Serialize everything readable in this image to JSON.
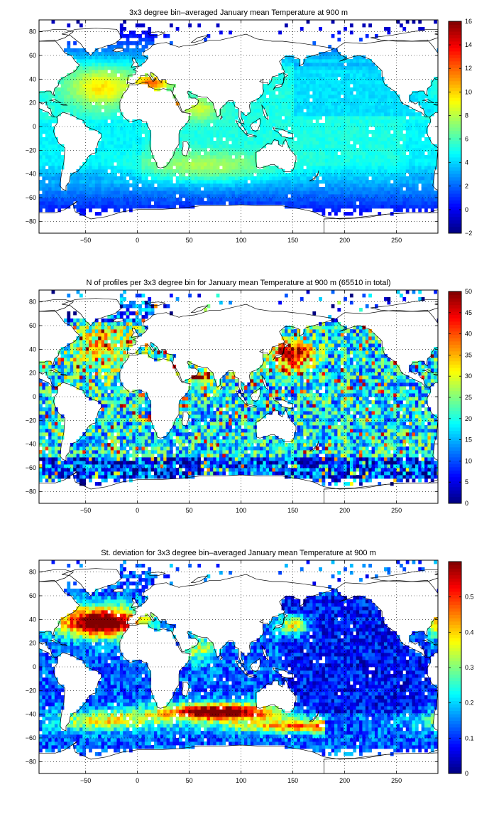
{
  "chart_data": [
    {
      "type": "heatmap",
      "title": "3x3 degree bin–averaged January mean Temperature at 900 m",
      "xlabel": "",
      "ylabel": "",
      "xlim": [
        -95,
        290
      ],
      "ylim": [
        -90,
        90
      ],
      "x_ticks": [
        -50,
        0,
        50,
        100,
        150,
        200,
        250
      ],
      "y_ticks": [
        -80,
        -60,
        -40,
        -20,
        0,
        20,
        40,
        60,
        80
      ],
      "colorbar": {
        "min": -2,
        "max": 16,
        "ticks": [
          -2,
          0,
          2,
          4,
          6,
          8,
          10,
          12,
          14,
          16
        ]
      },
      "colormap": "jet",
      "grid": true,
      "bin_size_deg": 3,
      "description_values": {
        "north_atlantic_subtropics": 9,
        "mediterranean_outflow": 14,
        "red_sea": 12,
        "arabian_sea": 9,
        "southern_ocean": 1,
        "north_pacific": 4,
        "south_indian": 8,
        "general_interior": 5
      }
    },
    {
      "type": "heatmap",
      "title": "N of profiles per 3x3 degree bin for January mean Temperature at 900 m (65510 in total)",
      "xlabel": "",
      "ylabel": "",
      "xlim": [
        -95,
        290
      ],
      "ylim": [
        -90,
        90
      ],
      "x_ticks": [
        -50,
        0,
        50,
        100,
        150,
        200,
        250
      ],
      "y_ticks": [
        -80,
        -60,
        -40,
        -20,
        0,
        20,
        40,
        60,
        80
      ],
      "colorbar": {
        "min": 0,
        "max": 50,
        "ticks": [
          0,
          5,
          10,
          15,
          20,
          25,
          30,
          35,
          40,
          45,
          50
        ]
      },
      "colormap": "jet",
      "grid": true,
      "bin_size_deg": 3,
      "description_values": {
        "kuroshio_region": 48,
        "north_atlantic": 35,
        "arabian_sea": 40,
        "southern_ocean": 8,
        "general_interior": 20
      }
    },
    {
      "type": "heatmap",
      "title": "St. deviation for 3x3 degree bin–averaged January mean Temperature at 900 m",
      "xlabel": "",
      "ylabel": "",
      "xlim": [
        -95,
        290
      ],
      "ylim": [
        -90,
        90
      ],
      "x_ticks": [
        -50,
        0,
        50,
        100,
        150,
        200,
        250
      ],
      "y_ticks": [
        -80,
        -60,
        -40,
        -20,
        0,
        20,
        40,
        60,
        80
      ],
      "colorbar": {
        "min": 0,
        "max": 0.6,
        "ticks": [
          0,
          0.1,
          0.2,
          0.3,
          0.4,
          0.5
        ]
      },
      "colormap": "jet",
      "grid": true,
      "bin_size_deg": 3,
      "description_values": {
        "agulhas_return_current": 0.6,
        "gulf_stream": 0.6,
        "kuroshio": 0.4,
        "north_pacific_interior": 0.05,
        "southern_ocean_front": 0.45,
        "general_interior": 0.12
      }
    }
  ],
  "colors": {
    "land": "#ffffff",
    "coastline": "#000000",
    "frame": "#000000"
  }
}
